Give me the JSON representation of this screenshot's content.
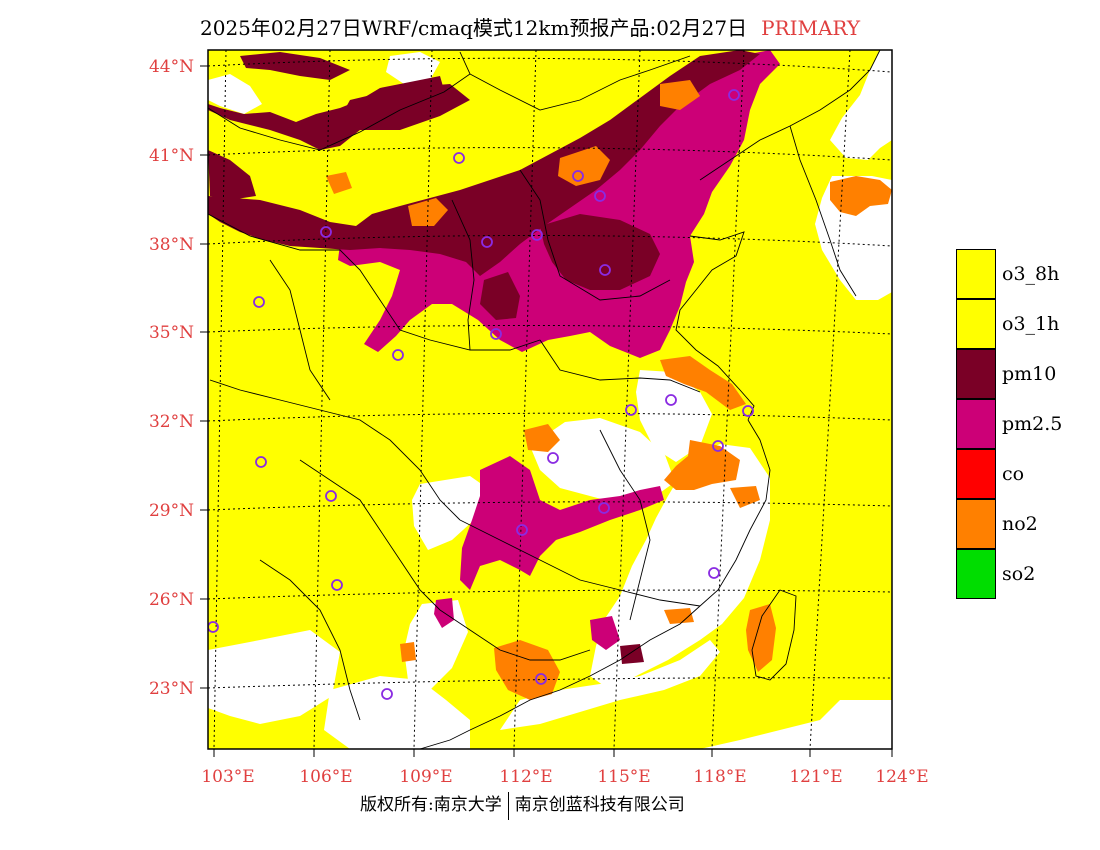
{
  "title": {
    "text": "2025年02月27日WRF/cmaq模式12km预报产品:02月27日",
    "tag": "PRIMARY"
  },
  "axes": {
    "lat_labels": [
      "44°N",
      "41°N",
      "38°N",
      "35°N",
      "32°N",
      "29°N",
      "26°N",
      "23°N"
    ],
    "lon_labels": [
      "103°E",
      "106°E",
      "109°E",
      "112°E",
      "115°E",
      "118°E",
      "121°E",
      "124°E"
    ]
  },
  "legend": {
    "items": [
      {
        "label": "o3_8h",
        "color": "#ffff00"
      },
      {
        "label": "o3_1h",
        "color": "#ffff00"
      },
      {
        "label": "pm10",
        "color": "#7a0026"
      },
      {
        "label": "pm2.5",
        "color": "#cc0077"
      },
      {
        "label": "co",
        "color": "#ff0000"
      },
      {
        "label": "no2",
        "color": "#ff8000"
      },
      {
        "label": "so2",
        "color": "#00dd00"
      }
    ]
  },
  "footer": {
    "left": "版权所有:南京大学",
    "right": "南京创蓝科技有限公司"
  },
  "colors": {
    "axis_label": "#e04040",
    "background": "#ffffff",
    "station_marker": "#8a2be2"
  }
}
